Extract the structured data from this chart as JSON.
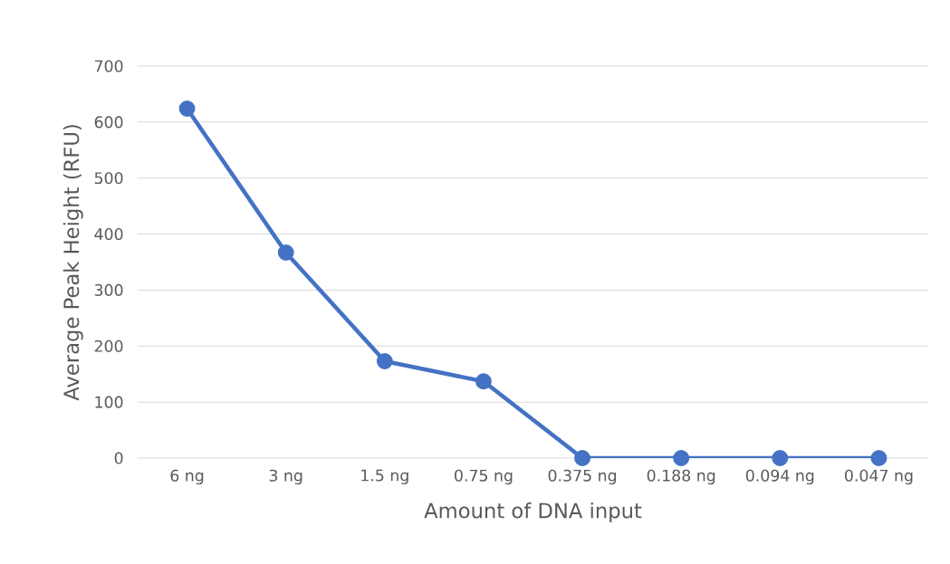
{
  "chart_data": {
    "type": "line",
    "xlabel": "Amount of DNA input",
    "ylabel": "Average Peak Height (RFU)",
    "categories": [
      "6 ng",
      "3 ng",
      "1.5 ng",
      "0.75 ng",
      "0.375 ng",
      "0.188 ng",
      "0.094 ng",
      "0.047 ng"
    ],
    "series": [
      {
        "color": "#4472c4",
        "values": [
          624,
          367,
          173,
          137,
          0,
          0,
          0,
          0
        ]
      }
    ],
    "ylim": [
      0,
      700
    ],
    "yticks": [
      0,
      100,
      200,
      300,
      400,
      500,
      600,
      700
    ],
    "grid": "y",
    "marker": "circle",
    "line_style": "solid"
  }
}
